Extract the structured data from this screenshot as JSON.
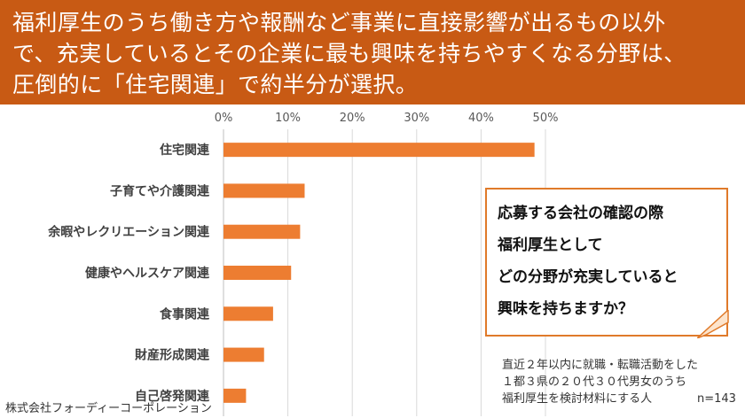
{
  "header": {
    "lines": [
      "福利厚生のうち働き方や報酬など事業に直接影響が出るもの以外",
      "で、充実しているとその企業に最も興味を持ちやすくなる分野は、",
      "圧倒的に「住宅関連」で約半分が選択。"
    ]
  },
  "chart_data": {
    "type": "bar",
    "orientation": "horizontal",
    "categories": [
      "住宅関連",
      "子育てや介護関連",
      "余暇やレクリエーション関連",
      "健康やヘルスケア関連",
      "食事関連",
      "財産形成関連",
      "自己啓発関連"
    ],
    "values": [
      48.3,
      12.6,
      11.9,
      10.5,
      7.7,
      6.3,
      3.5
    ],
    "xlim": [
      0,
      50
    ],
    "xticks": [
      "0%",
      "10%",
      "20%",
      "30%",
      "40%",
      "50%"
    ],
    "bar_color": "#ed7d31",
    "grid": true
  },
  "callout": {
    "lines": [
      "応募する会社の確認の際",
      "福利厚生として",
      "どの分野が充実していると",
      "興味を持ちますか？"
    ]
  },
  "note": {
    "lines": [
      "直近２年以内に就職・転職活動をした",
      "１都３県の２０代３０代男女のうち",
      "福利厚生を検討材料にする人",
      "n=143"
    ]
  },
  "footer": {
    "company": "株式会社フォーディーコーポレーション"
  }
}
